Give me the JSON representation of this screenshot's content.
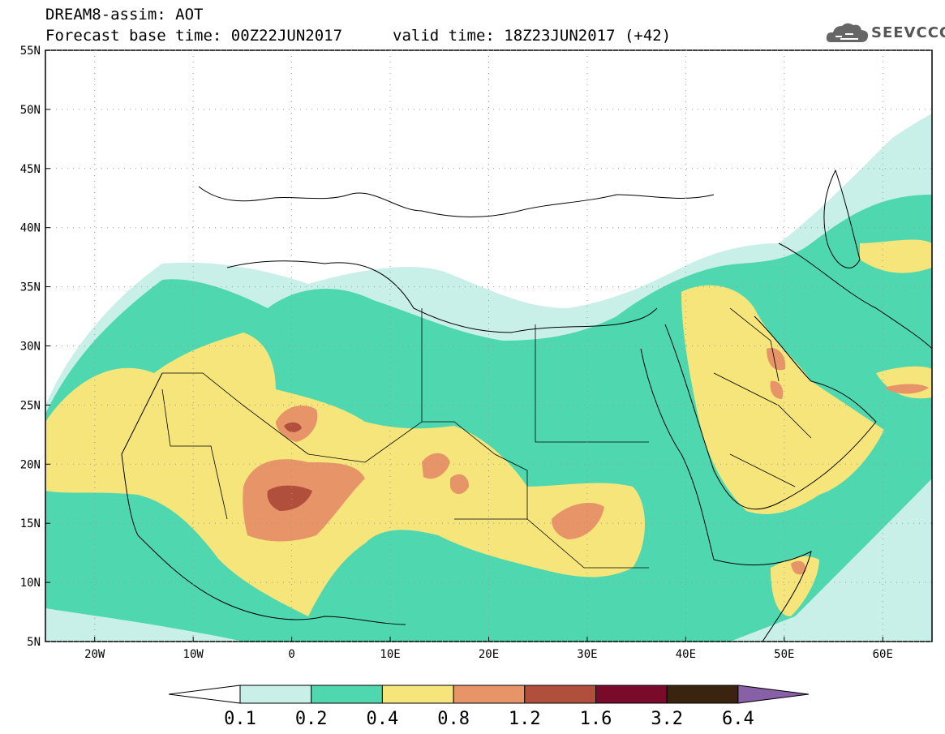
{
  "header": {
    "line1": "DREAM8-assim: AOT",
    "line2": "Forecast base time: 00Z22JUN2017",
    "valid": "valid time: 18Z23JUN2017 (+42)"
  },
  "logo": {
    "text": "SEEVCCC",
    "icon": "cloud-icon"
  },
  "map": {
    "lat_labels": [
      "55N",
      "50N",
      "45N",
      "40N",
      "35N",
      "30N",
      "25N",
      "20N",
      "15N",
      "10N",
      "5N"
    ],
    "lon_labels": [
      "20W",
      "10W",
      "0",
      "10E",
      "20E",
      "30E",
      "40E",
      "50E",
      "60E"
    ]
  },
  "colorbar": {
    "ticks": [
      "0.1",
      "0.2",
      "0.4",
      "0.8",
      "1.2",
      "1.6",
      "3.2",
      "6.4"
    ],
    "colors": [
      "#ffffff",
      "#c8f0e8",
      "#4fd8b0",
      "#f5e57a",
      "#e69468",
      "#b0503c",
      "#7a0a2a",
      "#3a2410",
      "#8860a8"
    ]
  },
  "chart_data": {
    "type": "heatmap",
    "variable": "AOT",
    "xlim": [
      -25,
      65
    ],
    "ylim": [
      5,
      55
    ],
    "levels": [
      0.1,
      0.2,
      0.4,
      0.8,
      1.2,
      1.6,
      3.2,
      6.4
    ],
    "hotspots": [
      {
        "lon": 0,
        "lat": 17.5,
        "peak": 1.6
      },
      {
        "lon": 0.5,
        "lat": 22.5,
        "peak": 1.6
      },
      {
        "lon": 29.5,
        "lat": 14.5,
        "peak": 1.2
      },
      {
        "lon": 48,
        "lat": 29.5,
        "peak": 1.2
      },
      {
        "lon": 53.5,
        "lat": 10.5,
        "peak": 1.2
      },
      {
        "lon": 16,
        "lat": 20.5,
        "peak": 1.2
      },
      {
        "lon": 63,
        "lat": 26.5,
        "peak": 1.2
      }
    ]
  }
}
